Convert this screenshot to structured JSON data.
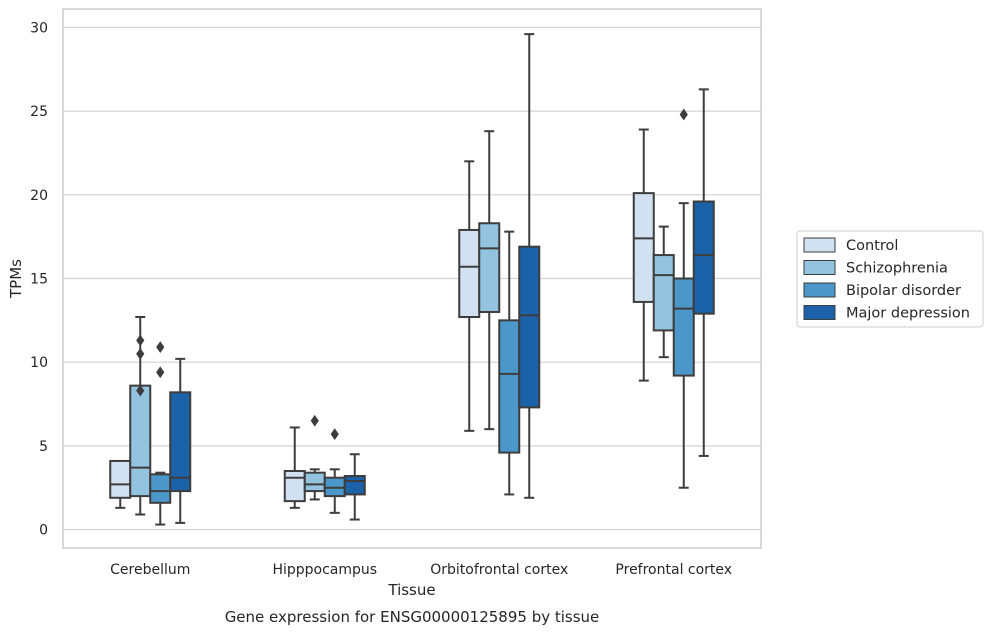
{
  "chart_data": {
    "type": "boxplot",
    "caption": "Gene expression for ENSG00000125895 by tissue",
    "xlabel": "Tissue",
    "ylabel": "TPMs",
    "ylim": [
      -1.1,
      31.1
    ],
    "yticks": [
      0,
      5,
      10,
      15,
      20,
      25,
      30
    ],
    "ytick_labels": [
      "0",
      "5",
      "10",
      "15",
      "20",
      "25",
      "30"
    ],
    "grid": "horizontal",
    "legend_position": "right",
    "categories": [
      "Cerebellum",
      "Hipppocampus",
      "Orbitofrontal cortex",
      "Prefrontal cortex"
    ],
    "colors": [
      "#d1e1f1",
      "#93c3df",
      "#4b97c9",
      "#1b62a8"
    ],
    "edge_color": "#3d3d3d",
    "series": [
      {
        "name": "Control",
        "boxes": [
          {
            "whisker_low": 1.3,
            "q1": 1.9,
            "median": 2.7,
            "q3": 4.1,
            "whisker_high": 4.1,
            "outliers": []
          },
          {
            "whisker_low": 1.3,
            "q1": 1.7,
            "median": 3.1,
            "q3": 3.5,
            "whisker_high": 6.1,
            "outliers": []
          },
          {
            "whisker_low": 5.9,
            "q1": 12.7,
            "median": 15.7,
            "q3": 17.9,
            "whisker_high": 22.0,
            "outliers": []
          },
          {
            "whisker_low": 8.9,
            "q1": 13.6,
            "median": 17.4,
            "q3": 20.1,
            "whisker_high": 23.9,
            "outliers": []
          }
        ]
      },
      {
        "name": "Schizophrenia",
        "boxes": [
          {
            "whisker_low": 0.9,
            "q1": 2.0,
            "median": 3.7,
            "q3": 8.6,
            "whisker_high": 12.7,
            "outliers": [
              8.3,
              10.5,
              11.3
            ]
          },
          {
            "whisker_low": 1.8,
            "q1": 2.3,
            "median": 2.7,
            "q3": 3.4,
            "whisker_high": 3.6,
            "outliers": [
              6.5
            ]
          },
          {
            "whisker_low": 6.0,
            "q1": 13.0,
            "median": 16.8,
            "q3": 18.3,
            "whisker_high": 23.8,
            "outliers": []
          },
          {
            "whisker_low": 10.3,
            "q1": 11.9,
            "median": 15.2,
            "q3": 16.4,
            "whisker_high": 18.1,
            "outliers": []
          }
        ]
      },
      {
        "name": "Bipolar disorder",
        "boxes": [
          {
            "whisker_low": 0.3,
            "q1": 1.6,
            "median": 2.3,
            "q3": 3.3,
            "whisker_high": 3.4,
            "outliers": [
              9.4,
              10.9
            ]
          },
          {
            "whisker_low": 1.0,
            "q1": 2.0,
            "median": 2.5,
            "q3": 3.1,
            "whisker_high": 3.6,
            "outliers": [
              5.7
            ]
          },
          {
            "whisker_low": 2.1,
            "q1": 4.6,
            "median": 9.3,
            "q3": 12.5,
            "whisker_high": 17.8,
            "outliers": []
          },
          {
            "whisker_low": 2.5,
            "q1": 9.2,
            "median": 13.2,
            "q3": 15.0,
            "whisker_high": 19.5,
            "outliers": [
              24.8
            ]
          }
        ]
      },
      {
        "name": "Major depression",
        "boxes": [
          {
            "whisker_low": 0.4,
            "q1": 2.3,
            "median": 3.1,
            "q3": 8.2,
            "whisker_high": 10.2,
            "outliers": []
          },
          {
            "whisker_low": 0.6,
            "q1": 2.1,
            "median": 2.9,
            "q3": 3.2,
            "whisker_high": 4.5,
            "outliers": []
          },
          {
            "whisker_low": 1.9,
            "q1": 7.3,
            "median": 12.8,
            "q3": 16.9,
            "whisker_high": 29.6,
            "outliers": []
          },
          {
            "whisker_low": 4.4,
            "q1": 12.9,
            "median": 16.4,
            "q3": 19.6,
            "whisker_high": 26.3,
            "outliers": []
          }
        ]
      }
    ]
  }
}
